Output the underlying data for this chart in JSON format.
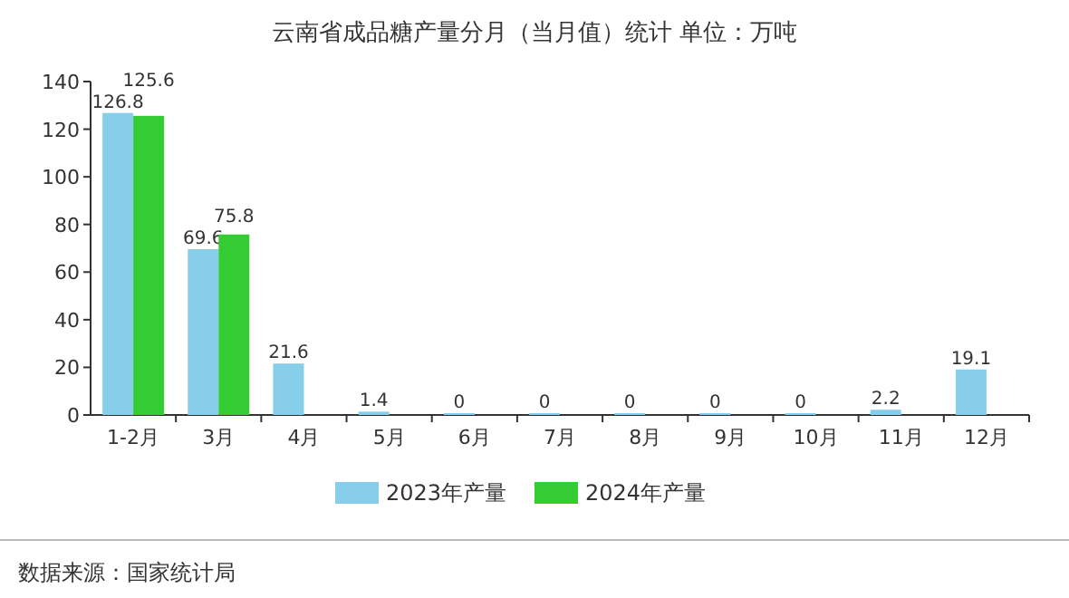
{
  "chart_data": {
    "type": "bar",
    "title": "云南省成品糖产量分月（当月值）统计 单位：万吨",
    "categories": [
      "1-2月",
      "3月",
      "4月",
      "5月",
      "6月",
      "7月",
      "8月",
      "9月",
      "10月",
      "11月",
      "12月"
    ],
    "series": [
      {
        "name": "2023年产量",
        "color": "#87ceeb",
        "values": [
          126.8,
          69.6,
          21.6,
          1.4,
          0,
          0,
          0,
          0,
          0,
          2.2,
          19.1
        ]
      },
      {
        "name": "2024年产量",
        "color": "#33cc33",
        "values": [
          125.6,
          75.8,
          null,
          null,
          null,
          null,
          null,
          null,
          null,
          null,
          null
        ]
      }
    ],
    "ylim": [
      0,
      140
    ],
    "yticks": [
      0,
      20,
      40,
      60,
      80,
      100,
      120,
      140
    ],
    "data_labels": true,
    "legend": "bottom",
    "grid": false,
    "annotations": [
      "数据来源：国家统计局"
    ]
  }
}
